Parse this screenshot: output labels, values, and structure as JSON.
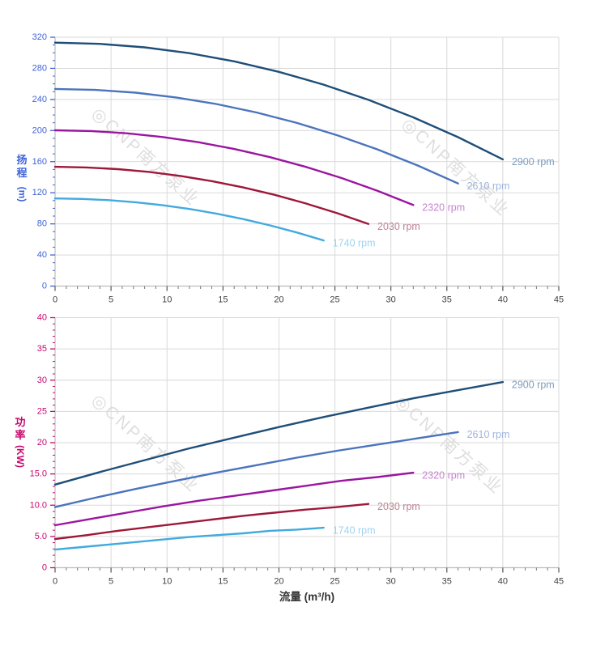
{
  "watermark": {
    "text": "◎CNP南方泵业",
    "color": "#d9d9d9"
  },
  "chart_data": [
    {
      "type": "line",
      "id": "head",
      "xlabel": "流量 (m³/h)",
      "ylabel": "扬程 (m)",
      "ylabel_char1": "扬",
      "ylabel_char2": "程",
      "ylabel_unit": "(m)",
      "axis_color": "#3e63d8",
      "x_tick_color": "#404040",
      "grid": true,
      "grid_color": "#d9d9d9",
      "spine_color": "#bdbdbd",
      "xlim": [
        0,
        45
      ],
      "ylim": [
        0,
        320
      ],
      "x_major_ticks": [
        0,
        5,
        10,
        15,
        20,
        25,
        30,
        35,
        40,
        45
      ],
      "x_tick_labels": [
        "0",
        "5",
        "10",
        "15",
        "20",
        "25",
        "30",
        "35",
        "40",
        "45"
      ],
      "x_minor_step": 1,
      "y_major_ticks": [
        0,
        40,
        80,
        120,
        160,
        200,
        240,
        280,
        320
      ],
      "y_tick_labels": [
        "0",
        "40",
        "80",
        "120",
        "160",
        "200",
        "240",
        "280",
        "320"
      ],
      "y_minor_step": 10,
      "series": [
        {
          "name": "2900 rpm",
          "color": "#1f4e79",
          "label_color": "#7f9cbc",
          "points": [
            [
              0,
              313
            ],
            [
              4,
              311.5
            ],
            [
              8,
              307
            ],
            [
              12,
              299.5
            ],
            [
              16,
              289
            ],
            [
              20,
              275.5
            ],
            [
              24,
              259
            ],
            [
              28,
              239.5
            ],
            [
              32,
              217
            ],
            [
              36,
              191.5
            ],
            [
              40,
              163
            ]
          ]
        },
        {
          "name": "2610 rpm",
          "color": "#4a74bd",
          "label_color": "#9fb4dc",
          "points": [
            [
              0,
              253.5
            ],
            [
              3.6,
              252.3
            ],
            [
              7.2,
              248.7
            ],
            [
              10.8,
              242.6
            ],
            [
              14.4,
              234.1
            ],
            [
              18,
              223.2
            ],
            [
              21.6,
              209.8
            ],
            [
              25.2,
              194
            ],
            [
              28.8,
              175.8
            ],
            [
              32.4,
              155.1
            ],
            [
              36,
              132
            ]
          ]
        },
        {
          "name": "2320 rpm",
          "color": "#9b15a0",
          "label_color": "#c583cd",
          "points": [
            [
              0,
              200.3
            ],
            [
              3.2,
              199.4
            ],
            [
              6.4,
              196.5
            ],
            [
              9.6,
              191.7
            ],
            [
              12.8,
              185
            ],
            [
              16,
              176.3
            ],
            [
              19.2,
              165.8
            ],
            [
              22.4,
              153.3
            ],
            [
              25.6,
              138.9
            ],
            [
              28.8,
              122.6
            ],
            [
              32,
              104.3
            ]
          ]
        },
        {
          "name": "2030 rpm",
          "color": "#9e1838",
          "label_color": "#bd8292",
          "points": [
            [
              0,
              153.4
            ],
            [
              2.8,
              152.6
            ],
            [
              5.6,
              150.4
            ],
            [
              8.4,
              146.8
            ],
            [
              11.2,
              141.6
            ],
            [
              14,
              135
            ],
            [
              16.8,
              126.9
            ],
            [
              19.6,
              117.4
            ],
            [
              22.4,
              106.3
            ],
            [
              25.2,
              93.8
            ],
            [
              28,
              79.9
            ]
          ]
        },
        {
          "name": "1740 rpm",
          "color": "#41aade",
          "label_color": "#9fd3ef",
          "points": [
            [
              0,
              112.7
            ],
            [
              2.4,
              112.1
            ],
            [
              4.8,
              110.5
            ],
            [
              7.2,
              107.8
            ],
            [
              9.6,
              104
            ],
            [
              12,
              99.2
            ],
            [
              14.4,
              93.2
            ],
            [
              16.8,
              86.2
            ],
            [
              19.2,
              78.1
            ],
            [
              21.6,
              68.9
            ],
            [
              24,
              58.7
            ]
          ]
        }
      ]
    },
    {
      "type": "line",
      "id": "power",
      "xlabel": "流量 (m³/h)",
      "ylabel": "功率 (KW)",
      "ylabel_char1": "功",
      "ylabel_char2": "率",
      "ylabel_unit": "(KW)",
      "axis_color": "#c60a6e",
      "x_tick_color": "#404040",
      "grid": true,
      "grid_color": "#d9d9d9",
      "spine_color": "#bdbdbd",
      "xlim": [
        0,
        45
      ],
      "ylim": [
        0,
        40
      ],
      "x_major_ticks": [
        0,
        5,
        10,
        15,
        20,
        25,
        30,
        35,
        40,
        45
      ],
      "x_tick_labels": [
        "0",
        "5",
        "10",
        "15",
        "20",
        "25",
        "30",
        "35",
        "40",
        "45"
      ],
      "x_minor_step": 1,
      "y_major_ticks": [
        0,
        5,
        10,
        15,
        20,
        25,
        30,
        35,
        40
      ],
      "y_tick_labels": [
        "0",
        "5.0",
        "10.0",
        "15.0",
        "20",
        "25",
        "30",
        "35",
        "40"
      ],
      "y_minor_step": 1,
      "series": [
        {
          "name": "2900 rpm",
          "color": "#1f4e79",
          "label_color": "#7f9cbc",
          "points": [
            [
              0,
              13.3
            ],
            [
              4,
              15.3
            ],
            [
              8,
              17.2
            ],
            [
              12,
              19.1
            ],
            [
              16,
              20.8
            ],
            [
              20,
              22.5
            ],
            [
              24,
              24.1
            ],
            [
              28,
              25.6
            ],
            [
              32,
              27.1
            ],
            [
              36,
              28.4
            ],
            [
              40,
              29.7
            ]
          ]
        },
        {
          "name": "2610 rpm",
          "color": "#4a74bd",
          "label_color": "#9fb4dc",
          "points": [
            [
              0,
              9.7
            ],
            [
              3.6,
              11.2
            ],
            [
              7.2,
              12.6
            ],
            [
              10.8,
              13.9
            ],
            [
              14.4,
              15.2
            ],
            [
              18,
              16.4
            ],
            [
              21.6,
              17.6
            ],
            [
              25.2,
              18.7
            ],
            [
              28.8,
              19.7
            ],
            [
              32.4,
              20.7
            ],
            [
              36,
              21.7
            ]
          ]
        },
        {
          "name": "2320 rpm",
          "color": "#9b15a0",
          "label_color": "#c583cd",
          "points": [
            [
              0,
              6.8
            ],
            [
              3.2,
              7.8
            ],
            [
              6.4,
              8.8
            ],
            [
              9.6,
              9.8
            ],
            [
              12.8,
              10.7
            ],
            [
              16,
              11.5
            ],
            [
              19.2,
              12.3
            ],
            [
              22.4,
              13.1
            ],
            [
              25.6,
              13.9
            ],
            [
              28.8,
              14.5
            ],
            [
              32,
              15.2
            ]
          ]
        },
        {
          "name": "2030 rpm",
          "color": "#9e1838",
          "label_color": "#bd8292",
          "points": [
            [
              0,
              4.6
            ],
            [
              2.8,
              5.2
            ],
            [
              5.6,
              5.9
            ],
            [
              8.4,
              6.5
            ],
            [
              11.2,
              7.1
            ],
            [
              14,
              7.7
            ],
            [
              16.8,
              8.3
            ],
            [
              19.6,
              8.8
            ],
            [
              22.4,
              9.3
            ],
            [
              25.2,
              9.7
            ],
            [
              28,
              10.2
            ]
          ]
        },
        {
          "name": "1740 rpm",
          "color": "#41aade",
          "label_color": "#9fd3ef",
          "points": [
            [
              0,
              2.9
            ],
            [
              2.4,
              3.3
            ],
            [
              4.8,
              3.7
            ],
            [
              7.2,
              4.1
            ],
            [
              9.6,
              4.5
            ],
            [
              12,
              4.9
            ],
            [
              14.4,
              5.2
            ],
            [
              16.8,
              5.5
            ],
            [
              19.2,
              5.9
            ],
            [
              21.6,
              6.1
            ],
            [
              24,
              6.4
            ]
          ]
        }
      ]
    }
  ]
}
